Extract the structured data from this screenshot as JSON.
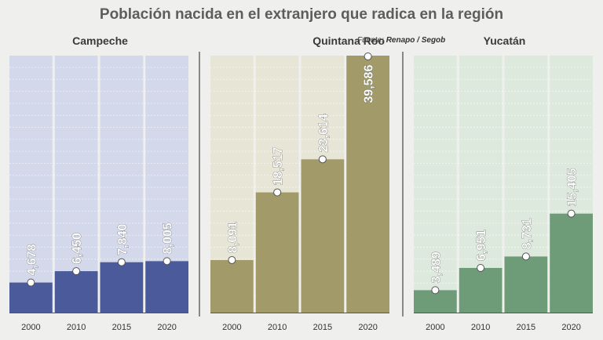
{
  "title": "Población nacida en el extranjero que radica en la región",
  "source": {
    "label": "Fuente:",
    "value": "Renapo / Segob"
  },
  "colors": {
    "campeche_bar": "#4a5a9a",
    "campeche_bg": "#d3d8ea",
    "quintana_bar": "#a29b69",
    "quintana_bg": "#e6e5d6",
    "yucatan_bar": "#6f9c78",
    "yucatan_bg": "#dde9dd"
  },
  "chart_data": [
    {
      "type": "bar",
      "title": "Campeche",
      "categories": [
        "2000",
        "2010",
        "2015",
        "2020"
      ],
      "values": [
        4678,
        6450,
        7840,
        8005
      ],
      "labels": [
        "4,678",
        "6,450",
        "7,840",
        "8,005"
      ]
    },
    {
      "type": "bar",
      "title": "Quintana Roo",
      "categories": [
        "2000",
        "2010",
        "2015",
        "2020"
      ],
      "values": [
        8091,
        18517,
        23614,
        39586
      ],
      "labels": [
        "8,091",
        "18,517",
        "23,614",
        "39,586"
      ]
    },
    {
      "type": "bar",
      "title": "Yucatán",
      "categories": [
        "2000",
        "2010",
        "2015",
        "2020"
      ],
      "values": [
        3489,
        6951,
        8731,
        15405
      ],
      "labels": [
        "3,489",
        "6,951",
        "8,731",
        "15,405"
      ]
    }
  ]
}
